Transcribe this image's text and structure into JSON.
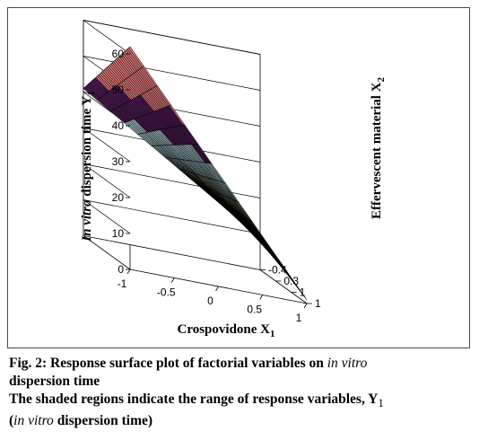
{
  "colors": {
    "frame_border": "#4a4a4a",
    "grid_line": "#000000",
    "wall_fill": "#ffffff",
    "band_colors": [
      "#7c7ca8",
      "#8a2a55",
      "#ffffc2",
      "#c8ecf2",
      "#5a1f61",
      "#ee7f7f"
    ]
  },
  "chart_data": {
    "type": "surface",
    "view": "3d",
    "x_axis": {
      "label_parts": [
        "Crospovidone X",
        "1"
      ],
      "ticks": [
        "-1",
        "-0.5",
        "0",
        "0.5",
        "1"
      ],
      "range": [
        -1,
        1
      ]
    },
    "z_axis": {
      "label_parts": [
        "Effervescent material X",
        "2"
      ],
      "ticks": [
        "-0.4",
        "0.3",
        "1",
        "1"
      ],
      "range": [
        -1,
        1
      ]
    },
    "y_axis": {
      "label_parts": [
        "In vitro",
        " dispersion time Y",
        "1"
      ],
      "ticks": [
        "0",
        "10",
        "20",
        "30",
        "40",
        "50",
        "60"
      ],
      "range": [
        0,
        60
      ]
    },
    "band_edges": [
      0,
      5,
      15,
      25,
      35,
      45,
      60
    ],
    "surface_corners": {
      "x1_-1_x2_-1": 41,
      "x1_1_x2_-1": 9,
      "x1_-1_x2_1": 62,
      "x1_1_x2_1": 1
    },
    "grid_x_steps": 13,
    "grid_z_steps": 34
  },
  "caption": {
    "line1_prefix": "Fig. 2: Response surface plot of factorial variables on ",
    "line1_italic": "in vitro",
    "line2": "dispersion time",
    "line3_prefix": "The shaded regions indicate the range of response variables, Y",
    "line3_sub": "1",
    "line4_open": "(",
    "line4_italic": "in vitro",
    "line4_rest": " dispersion time)"
  }
}
